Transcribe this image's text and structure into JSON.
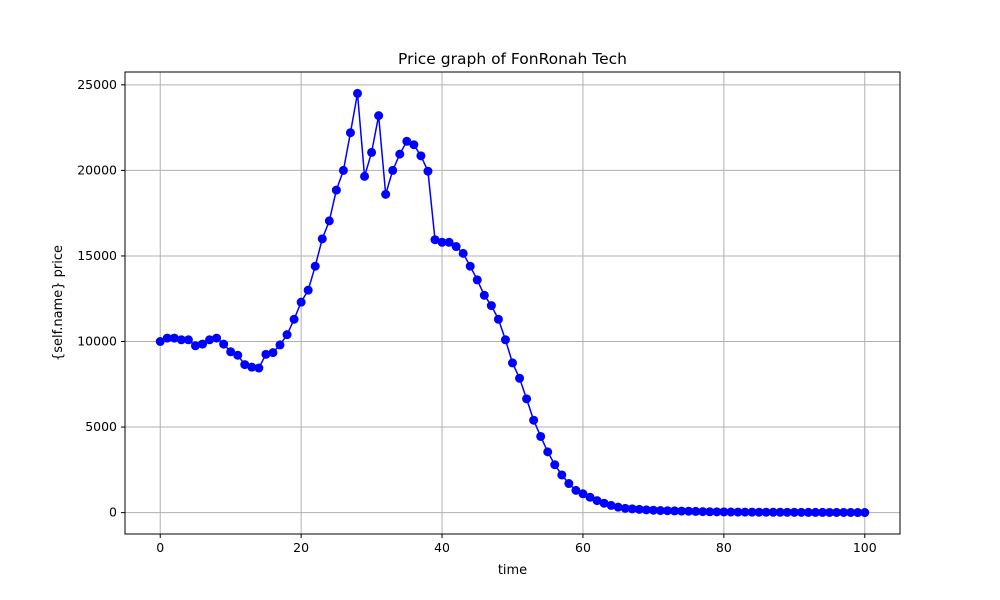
{
  "chart_data": {
    "type": "line",
    "title": "Price graph of FonRonah Tech",
    "xlabel": "time",
    "ylabel": "{self.name} price",
    "xlim": [
      -5,
      105
    ],
    "ylim": [
      -1250,
      25750
    ],
    "xticks": [
      0,
      20,
      40,
      60,
      80,
      100
    ],
    "yticks": [
      0,
      5000,
      10000,
      15000,
      20000,
      25000
    ],
    "xtick_labels": [
      "0",
      "20",
      "40",
      "60",
      "80",
      "100"
    ],
    "ytick_labels": [
      "0",
      "5000",
      "10000",
      "15000",
      "20000",
      "25000"
    ],
    "grid": true,
    "line_color": "#0000ff",
    "marker": "circle",
    "x": [
      0,
      1,
      2,
      3,
      4,
      5,
      6,
      7,
      8,
      9,
      10,
      11,
      12,
      13,
      14,
      15,
      16,
      17,
      18,
      19,
      20,
      21,
      22,
      23,
      24,
      25,
      26,
      27,
      28,
      29,
      30,
      31,
      32,
      33,
      34,
      35,
      36,
      37,
      38,
      39,
      40,
      41,
      42,
      43,
      44,
      45,
      46,
      47,
      48,
      49,
      50,
      51,
      52,
      53,
      54,
      55,
      56,
      57,
      58,
      59,
      60,
      61,
      62,
      63,
      64,
      65,
      66,
      67,
      68,
      69,
      70,
      71,
      72,
      73,
      74,
      75,
      76,
      77,
      78,
      79,
      80,
      81,
      82,
      83,
      84,
      85,
      86,
      87,
      88,
      89,
      90,
      91,
      92,
      93,
      94,
      95,
      96,
      97,
      98,
      99,
      100
    ],
    "y": [
      10000,
      10200,
      10200,
      10100,
      10100,
      9750,
      9850,
      10100,
      10200,
      9850,
      9400,
      9200,
      8650,
      8500,
      8450,
      9250,
      9350,
      9800,
      10400,
      11300,
      12300,
      13000,
      14400,
      16000,
      17050,
      18850,
      20000,
      22200,
      24500,
      19650,
      21050,
      23200,
      18600,
      20000,
      20950,
      21700,
      21500,
      20850,
      19950,
      15950,
      15800,
      15800,
      15550,
      15150,
      14400,
      13600,
      12700,
      12100,
      11300,
      10100,
      8750,
      7850,
      6650,
      5400,
      4450,
      3550,
      2800,
      2200,
      1700,
      1300,
      1100,
      900,
      700,
      550,
      420,
      320,
      250,
      220,
      190,
      160,
      140,
      120,
      110,
      100,
      90,
      80,
      70,
      60,
      50,
      45,
      40,
      35,
      30,
      28,
      26,
      24,
      22,
      20,
      18,
      16,
      15,
      14,
      13,
      12,
      11,
      10,
      9,
      8,
      7,
      6,
      5
    ]
  }
}
